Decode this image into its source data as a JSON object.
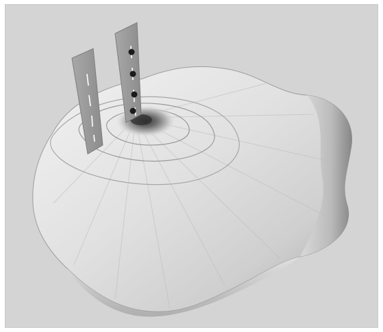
{
  "scene": {
    "background_color": "#d4d4d4",
    "surface_base_color": "#e6e6e6",
    "surface_shadow_color": "#8a8a8a",
    "panel_color": "#9a9a9a",
    "marker_color": "#1a1a1a",
    "label_dash_color": "#ffffff"
  }
}
